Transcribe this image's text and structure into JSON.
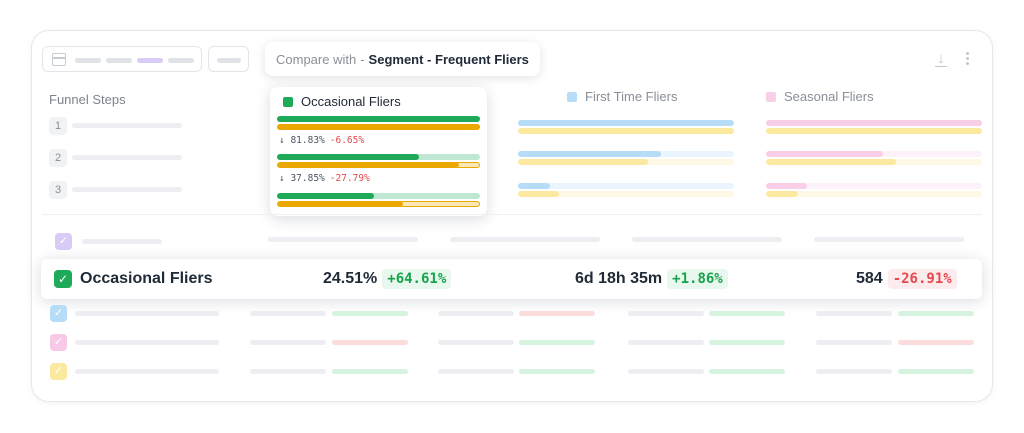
{
  "toolbar": {
    "compare_prefix": "Compare with",
    "compare_separator": "-",
    "compare_segment": "Segment - Frequent Fliers",
    "icons": [
      "calendar-icon",
      "download-icon",
      "more-vertical-icon"
    ]
  },
  "funnel": {
    "title": "Funnel Steps",
    "steps": [
      "1",
      "2",
      "3"
    ]
  },
  "segments": [
    {
      "name": "Occasional Fliers",
      "color": "#1faa59",
      "compare_color": "#eaa800",
      "bars": [
        {
          "primary": 1.0,
          "compare": 1.0
        },
        {
          "primary": 0.7,
          "compare": 0.9
        },
        {
          "primary": 0.48,
          "compare": 0.62
        }
      ],
      "conversions": [
        {
          "text": "↓ 81.83%",
          "delta": "-6.65%"
        },
        {
          "text": "↓ 37.85%",
          "delta": "-27.79%"
        }
      ]
    },
    {
      "name": "First Time Fliers",
      "color": "#b7dcf7",
      "compare_color": "#fbe9a0",
      "bars": [
        {
          "primary": 1.0,
          "compare": 1.0
        },
        {
          "primary": 0.66,
          "compare": 0.6
        },
        {
          "primary": 0.15,
          "compare": 0.19
        }
      ]
    },
    {
      "name": "Seasonal Fliers",
      "color": "#f9cfe8",
      "compare_color": "#fbe9a0",
      "bars": [
        {
          "primary": 1.0,
          "compare": 1.0
        },
        {
          "primary": 0.54,
          "compare": 0.6
        },
        {
          "primary": 0.19,
          "compare": 0.15
        }
      ]
    }
  ],
  "highlight_row": {
    "label": "Occasional Fliers",
    "metrics": [
      {
        "value": "24.51%",
        "delta": "+64.61%",
        "sign": "pos"
      },
      {
        "value": "6d 18h 35m",
        "delta": "+1.86%",
        "sign": "pos"
      },
      {
        "value": "584",
        "delta": "-26.91%",
        "sign": "neg"
      }
    ]
  },
  "checkbox_colors": {
    "purple": "#d8ccf6",
    "blue": "#b7dcf7",
    "pink": "#f7c9e6",
    "yellow": "#fbe9a0",
    "green": "#1faa59"
  },
  "placeholder_colors": {
    "gray": "#eceef1",
    "green": "#d6f3e0",
    "red": "#fbdcdc"
  }
}
